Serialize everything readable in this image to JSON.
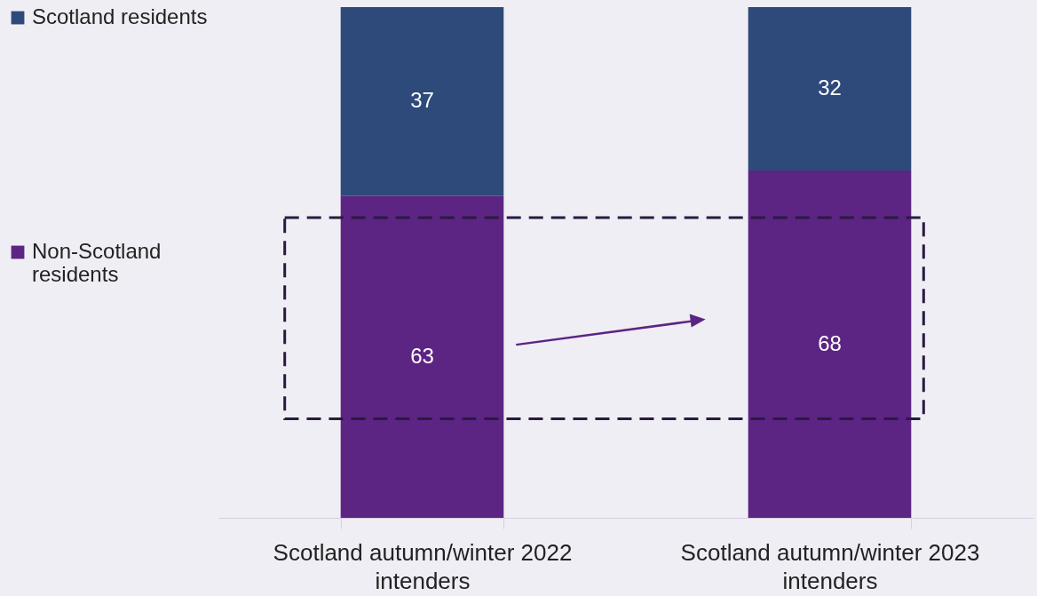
{
  "chart_data": {
    "type": "bar",
    "stacked": true,
    "data_labels": true,
    "legend": "left",
    "grid": false,
    "categories": [
      "Scotland autumn/winter 2022 intenders",
      "Scotland autumn/winter 2023 intenders"
    ],
    "series": [
      {
        "name": "Non-Scotland residents",
        "color": "#5c2483",
        "values": [
          63,
          68
        ]
      },
      {
        "name": "Scotland residents",
        "color": "#2e4a7a",
        "values": [
          37,
          32
        ]
      }
    ]
  }
}
